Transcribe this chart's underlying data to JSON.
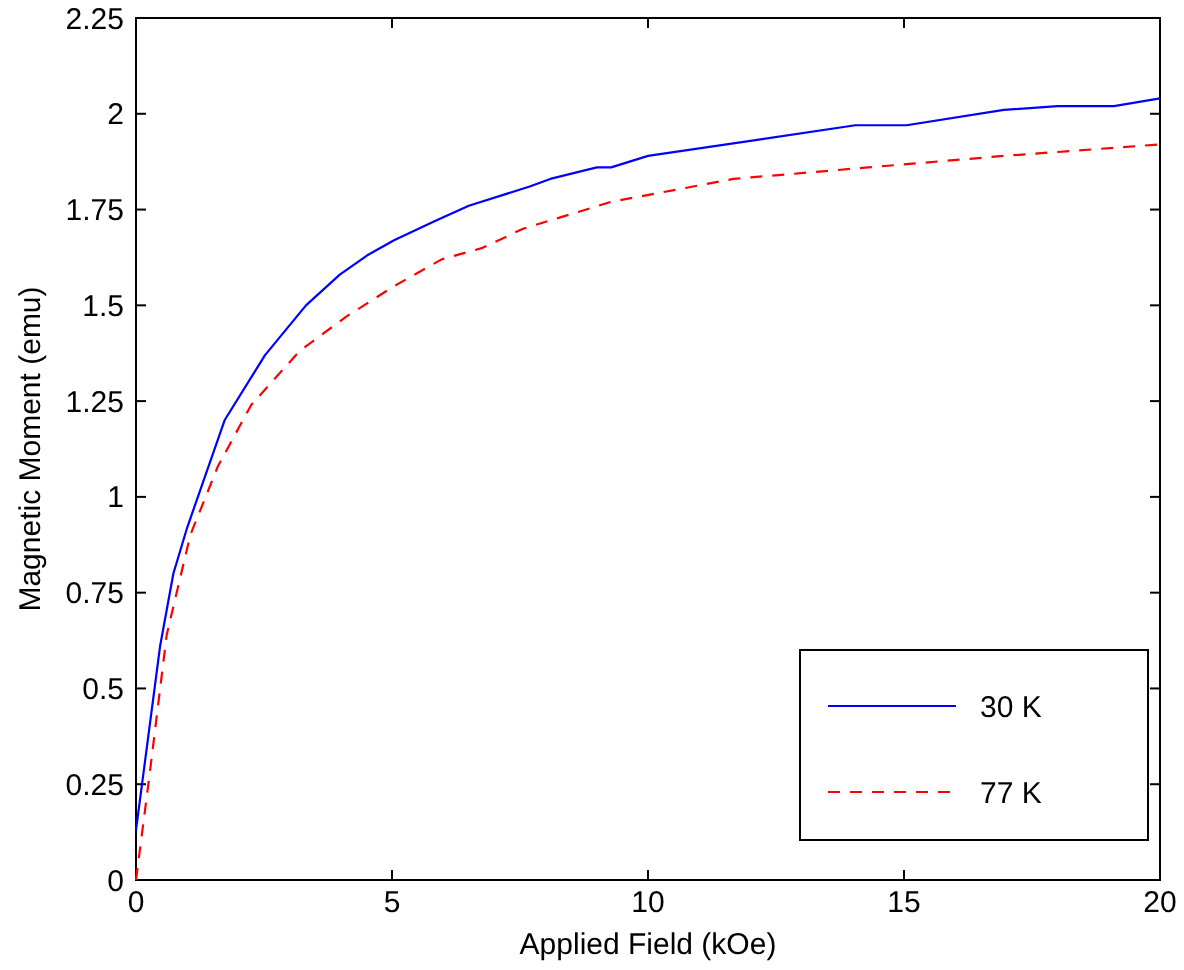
{
  "chart_data": {
    "type": "line",
    "xlabel": "Applied Field (kOe)",
    "ylabel": "Magnetic Moment (emu)",
    "xlim": [
      0,
      20
    ],
    "ylim": [
      0,
      2.25
    ],
    "xticks": [
      0,
      5,
      10,
      15,
      20
    ],
    "yticks": [
      0,
      0.25,
      0.5,
      0.75,
      1,
      1.25,
      1.5,
      1.75,
      2,
      2.25
    ],
    "legend": "bottom right",
    "grid": false,
    "series": [
      {
        "name": "30 K",
        "color": "#0000ff",
        "line_style": "solid",
        "x": [
          0,
          0.47,
          0.73,
          1.0,
          1.73,
          2.52,
          3.32,
          3.98,
          4.51,
          5.04,
          5.84,
          6.5,
          7.69,
          8.09,
          9.0,
          9.28,
          10.0,
          14.05,
          15.05,
          16.95,
          18.0,
          19.1,
          20
        ],
        "values": [
          0.13,
          0.61,
          0.8,
          0.92,
          1.2,
          1.37,
          1.5,
          1.58,
          1.63,
          1.67,
          1.72,
          1.76,
          1.81,
          1.83,
          1.86,
          1.86,
          1.89,
          1.97,
          1.97,
          2.01,
          2.02,
          2.02,
          2.04
        ]
      },
      {
        "name": "77 K",
        "color": "#ff0000",
        "line_style": "dashed",
        "x": [
          0,
          0.27,
          0.6,
          1.06,
          1.6,
          2.25,
          3.19,
          4.1,
          5.04,
          5.97,
          6.77,
          7.56,
          9.28,
          11.67,
          14.3,
          16.95,
          20
        ],
        "values": [
          0,
          0.28,
          0.64,
          0.9,
          1.08,
          1.24,
          1.38,
          1.47,
          1.55,
          1.62,
          1.65,
          1.7,
          1.77,
          1.83,
          1.86,
          1.89,
          1.92
        ]
      }
    ]
  }
}
